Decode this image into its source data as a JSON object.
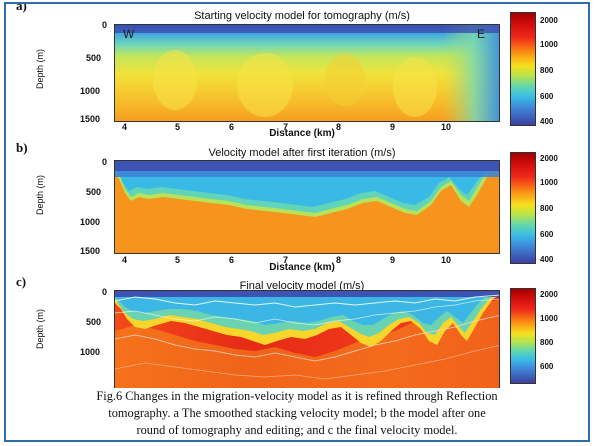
{
  "panels": [
    {
      "label": "a)",
      "title": "Starting velocity model for tomography (m/s)",
      "ylabel": "Depth (m)",
      "xlabel": "Distance (km)",
      "yticks": [
        "0",
        "500",
        "1000",
        "1500"
      ],
      "xticks": [
        "4",
        "5",
        "6",
        "7",
        "8",
        "9",
        "10"
      ],
      "colorbar_ticks": [
        "2000",
        "1000",
        "800",
        "600",
        "400"
      ],
      "annotations": [
        "W",
        "E"
      ]
    },
    {
      "label": "b)",
      "title": "Velocity model after first iteration (m/s)",
      "ylabel": "Depth (m)",
      "xlabel": "Distance (km)",
      "yticks": [
        "0",
        "500",
        "1000",
        "1500"
      ],
      "xticks": [
        "4",
        "5",
        "6",
        "7",
        "8",
        "9",
        "10"
      ],
      "colorbar_ticks": [
        "2000",
        "1000",
        "800",
        "600",
        "400"
      ]
    },
    {
      "label": "c)",
      "title": "Final velocity model (m/s)",
      "ylabel": "Depth (m)",
      "yticks": [
        "0",
        "500",
        "1000"
      ],
      "colorbar_ticks": [
        "2000",
        "1000",
        "800",
        "600"
      ]
    }
  ],
  "caption": {
    "line1": "Fig.6   Changes in the migration-velocity model as it is refined through Reflection",
    "line2": "tomography. a The smoothed stacking velocity model; b the  model after one",
    "line3": "round of tomography and editing; and c the final velocity model."
  },
  "colors": {
    "border": "#2f6ea8",
    "low_velocity": "#3e3f9e",
    "mid_velocity": "#38bce6",
    "high_velocity": "#f7941d",
    "max_velocity": "#c00000"
  }
}
